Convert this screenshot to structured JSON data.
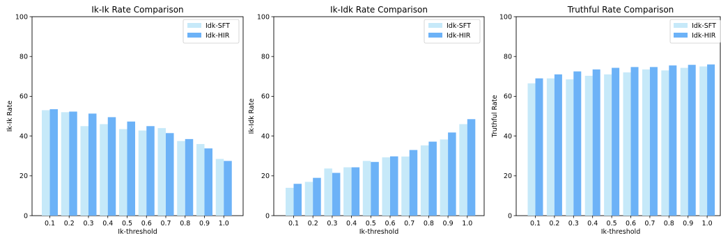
{
  "chart_data": [
    {
      "type": "bar",
      "title": "Ik-Ik Rate Comparison",
      "xlabel": "Ik-threshold",
      "ylabel": "Ik-Ik Rate",
      "ylim": [
        0,
        100
      ],
      "yticks": [
        0,
        20,
        40,
        60,
        80,
        100
      ],
      "legend": "top-right",
      "grid": false,
      "categories": [
        "0.1",
        "0.2",
        "0.3",
        "0.4",
        "0.5",
        "0.6",
        "0.7",
        "0.8",
        "0.9",
        "1.0"
      ],
      "series": [
        {
          "name": "Idk-SFT",
          "color": "#c6e9f9",
          "values": [
            53.0,
            52.0,
            45.0,
            46.0,
            43.5,
            42.8,
            44.0,
            37.5,
            36.0,
            28.5
          ]
        },
        {
          "name": "Idk-HIR",
          "color": "#6cb2f7",
          "values": [
            53.5,
            52.3,
            51.3,
            49.5,
            47.3,
            45.0,
            41.5,
            38.5,
            33.8,
            27.5
          ]
        }
      ]
    },
    {
      "type": "bar",
      "title": "Ik-Idk Rate Comparison",
      "xlabel": "Ik-threshold",
      "ylabel": "Ik-Idk Rate",
      "ylim": [
        0,
        100
      ],
      "yticks": [
        0,
        20,
        40,
        60,
        80,
        100
      ],
      "legend": "top-right",
      "grid": false,
      "categories": [
        "0.1",
        "0.2",
        "0.3",
        "0.4",
        "0.5",
        "0.6",
        "0.7",
        "0.8",
        "0.9",
        "1.0"
      ],
      "series": [
        {
          "name": "Idk-SFT",
          "color": "#c6e9f9",
          "values": [
            14.0,
            17.0,
            23.7,
            24.3,
            27.5,
            29.3,
            29.7,
            35.3,
            38.3,
            46.0
          ]
        },
        {
          "name": "Idk-HIR",
          "color": "#6cb2f7",
          "values": [
            16.0,
            19.0,
            21.5,
            24.3,
            27.0,
            29.8,
            33.0,
            37.2,
            41.8,
            48.5
          ]
        }
      ]
    },
    {
      "type": "bar",
      "title": "Truthful Rate Comparison",
      "xlabel": "Ik-threshold",
      "ylabel": "Truthful Rate",
      "ylim": [
        0,
        100
      ],
      "yticks": [
        0,
        20,
        40,
        60,
        80,
        100
      ],
      "legend": "top-right",
      "grid": false,
      "categories": [
        "0.1",
        "0.2",
        "0.3",
        "0.4",
        "0.5",
        "0.6",
        "0.7",
        "0.8",
        "0.9",
        "1.0"
      ],
      "series": [
        {
          "name": "Idk-SFT",
          "color": "#c6e9f9",
          "values": [
            66.5,
            69.0,
            68.5,
            70.3,
            71.0,
            72.0,
            73.5,
            73.0,
            74.3,
            75.0
          ]
        },
        {
          "name": "Idk-HIR",
          "color": "#6cb2f7",
          "values": [
            69.0,
            71.0,
            72.5,
            73.5,
            74.3,
            74.7,
            74.7,
            75.5,
            75.8,
            76.0
          ]
        }
      ]
    }
  ]
}
